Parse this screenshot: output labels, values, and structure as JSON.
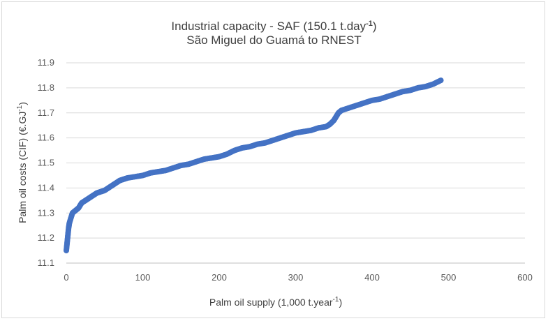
{
  "chart_data": {
    "type": "scatter",
    "title_line1": "Industrial capacity - SAF (150.1 t.day",
    "title_line1_sup": "-1",
    "title_line1_end": ")",
    "title_line2": "São Miguel do Guamá to RNEST",
    "xlabel": "Palm oil supply (1,000 t.year",
    "xlabel_sup": "-1",
    "xlabel_end": ")",
    "ylabel": "Palm oil costs (CIF) (€.GJ",
    "ylabel_sup": "-1",
    "ylabel_end": ")",
    "xlim": [
      0,
      600
    ],
    "ylim": [
      11.1,
      11.9
    ],
    "x_ticks": [
      "0",
      "100",
      "200",
      "300",
      "400",
      "500",
      "600"
    ],
    "y_ticks": [
      "11.1",
      "11.2",
      "11.3",
      "11.4",
      "11.5",
      "11.6",
      "11.7",
      "11.8",
      "11.9"
    ],
    "grid": "horizontal",
    "legend": "none",
    "marker_color": "#4472c4",
    "points": [
      [
        0,
        11.15
      ],
      [
        1,
        11.18
      ],
      [
        2,
        11.21
      ],
      [
        3,
        11.24
      ],
      [
        4,
        11.26
      ],
      [
        6,
        11.28
      ],
      [
        8,
        11.3
      ],
      [
        12,
        11.31
      ],
      [
        16,
        11.32
      ],
      [
        20,
        11.34
      ],
      [
        25,
        11.35
      ],
      [
        30,
        11.36
      ],
      [
        35,
        11.37
      ],
      [
        40,
        11.38
      ],
      [
        45,
        11.385
      ],
      [
        50,
        11.39
      ],
      [
        55,
        11.4
      ],
      [
        60,
        11.41
      ],
      [
        65,
        11.42
      ],
      [
        70,
        11.43
      ],
      [
        75,
        11.435
      ],
      [
        80,
        11.44
      ],
      [
        90,
        11.445
      ],
      [
        100,
        11.45
      ],
      [
        110,
        11.46
      ],
      [
        120,
        11.465
      ],
      [
        130,
        11.47
      ],
      [
        140,
        11.48
      ],
      [
        150,
        11.49
      ],
      [
        160,
        11.495
      ],
      [
        170,
        11.505
      ],
      [
        180,
        11.515
      ],
      [
        190,
        11.52
      ],
      [
        200,
        11.525
      ],
      [
        210,
        11.535
      ],
      [
        220,
        11.55
      ],
      [
        230,
        11.56
      ],
      [
        240,
        11.565
      ],
      [
        250,
        11.575
      ],
      [
        260,
        11.58
      ],
      [
        270,
        11.59
      ],
      [
        280,
        11.6
      ],
      [
        290,
        11.61
      ],
      [
        300,
        11.62
      ],
      [
        310,
        11.625
      ],
      [
        320,
        11.63
      ],
      [
        330,
        11.64
      ],
      [
        340,
        11.645
      ],
      [
        345,
        11.655
      ],
      [
        350,
        11.67
      ],
      [
        353,
        11.685
      ],
      [
        356,
        11.7
      ],
      [
        360,
        11.71
      ],
      [
        370,
        11.72
      ],
      [
        380,
        11.73
      ],
      [
        390,
        11.74
      ],
      [
        400,
        11.75
      ],
      [
        410,
        11.755
      ],
      [
        420,
        11.765
      ],
      [
        430,
        11.775
      ],
      [
        440,
        11.785
      ],
      [
        450,
        11.79
      ],
      [
        460,
        11.8
      ],
      [
        470,
        11.805
      ],
      [
        480,
        11.815
      ],
      [
        490,
        11.83
      ]
    ]
  }
}
